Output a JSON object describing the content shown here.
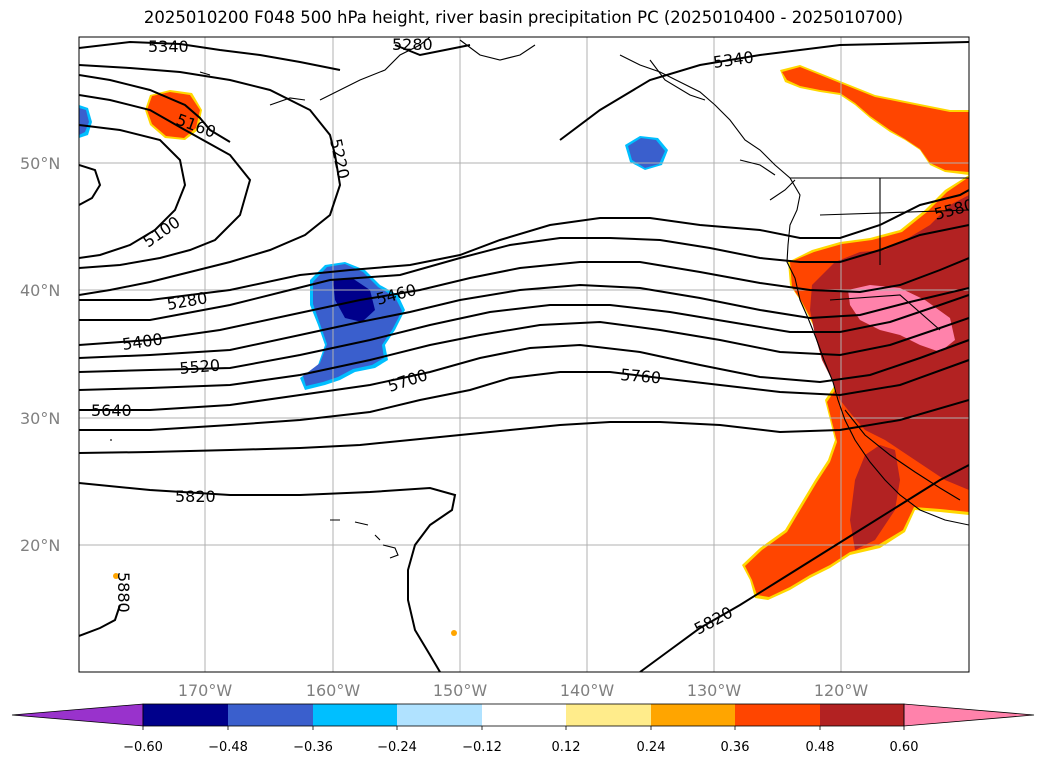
{
  "title": "2025010200 F048 500 hPa height, river basin precipitation PC (2025010400 - 2025010700)",
  "map": {
    "lat_ticks": [
      "50°N",
      "40°N",
      "30°N",
      "20°N"
    ],
    "lon_ticks": [
      "170°W",
      "160°W",
      "150°W",
      "140°W",
      "130°W",
      "120°W"
    ],
    "contour_labels": [
      "5340",
      "5280",
      "5340",
      "5160",
      "5220",
      "5100",
      "5280",
      "5400",
      "5460",
      "5520",
      "5580",
      "5640",
      "5700",
      "5760",
      "5820",
      "5880",
      "5820"
    ]
  },
  "colorbar": {
    "colors": [
      "#9932cc",
      "#00008b",
      "#3a5fcd",
      "#00bfff",
      "#b0e2ff",
      "#ffffff",
      "#ffec8b",
      "#ffa500",
      "#ff4500",
      "#b22222",
      "#ff82ab"
    ],
    "tick_labels": [
      "−0.60",
      "−0.48",
      "−0.36",
      "−0.24",
      "−0.12",
      "0.12",
      "0.24",
      "0.36",
      "0.48",
      "0.60"
    ]
  }
}
